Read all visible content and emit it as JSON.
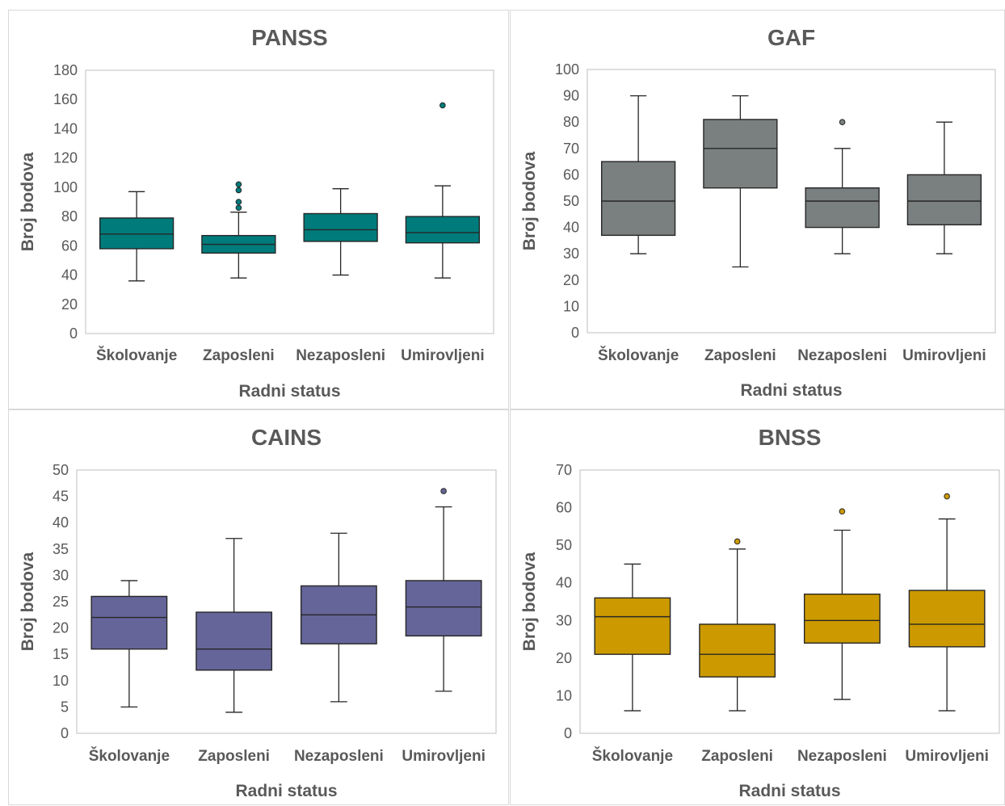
{
  "chart_data": [
    {
      "type": "boxplot",
      "title": "PANSS",
      "xlabel": "Radni status",
      "ylabel": "Broj bodova",
      "ylim": [
        0,
        180
      ],
      "ticks": [
        0,
        20,
        40,
        60,
        80,
        100,
        120,
        140,
        160,
        180
      ],
      "color": "#007B7B",
      "categories": [
        "Školovanje",
        "Zaposleni",
        "Nezaposleni",
        "Umirovljeni"
      ],
      "boxes": [
        {
          "min": 36,
          "q1": 58,
          "median": 68,
          "q3": 79,
          "max": 97,
          "outliers": []
        },
        {
          "min": 38,
          "q1": 55,
          "median": 61,
          "q3": 67,
          "max": 83,
          "outliers": [
            86,
            90,
            98,
            102
          ]
        },
        {
          "min": 40,
          "q1": 63,
          "median": 71,
          "q3": 82,
          "max": 99,
          "outliers": []
        },
        {
          "min": 38,
          "q1": 62,
          "median": 69,
          "q3": 80,
          "max": 101,
          "outliers": [
            156
          ]
        }
      ]
    },
    {
      "type": "boxplot",
      "title": "GAF",
      "xlabel": "Radni status",
      "ylabel": "Broj bodova",
      "ylim": [
        0,
        100
      ],
      "ticks": [
        0,
        10,
        20,
        30,
        40,
        50,
        60,
        70,
        80,
        90,
        100
      ],
      "color": "#7A7F80",
      "categories": [
        "Školovanje",
        "Zaposleni",
        "Nezaposleni",
        "Umirovljeni"
      ],
      "boxes": [
        {
          "min": 30,
          "q1": 37,
          "median": 50,
          "q3": 65,
          "max": 90,
          "outliers": []
        },
        {
          "min": 25,
          "q1": 55,
          "median": 70,
          "q3": 81,
          "max": 90,
          "outliers": []
        },
        {
          "min": 30,
          "q1": 40,
          "median": 50,
          "q3": 55,
          "max": 70,
          "outliers": [
            80
          ]
        },
        {
          "min": 30,
          "q1": 41,
          "median": 50,
          "q3": 60,
          "max": 80,
          "outliers": []
        }
      ]
    },
    {
      "type": "boxplot",
      "title": "CAINS",
      "xlabel": "Radni status",
      "ylabel": "Broj bodova",
      "ylim": [
        0,
        50
      ],
      "ticks": [
        0,
        5,
        10,
        15,
        20,
        25,
        30,
        35,
        40,
        45,
        50
      ],
      "color": "#65659A",
      "categories": [
        "Školovanje",
        "Zaposleni",
        "Nezaposleni",
        "Umirovljeni"
      ],
      "boxes": [
        {
          "min": 5,
          "q1": 16,
          "median": 22,
          "q3": 26,
          "max": 29,
          "outliers": []
        },
        {
          "min": 4,
          "q1": 12,
          "median": 16,
          "q3": 23,
          "max": 37,
          "outliers": []
        },
        {
          "min": 6,
          "q1": 17,
          "median": 22.5,
          "q3": 28,
          "max": 38,
          "outliers": []
        },
        {
          "min": 8,
          "q1": 18.5,
          "median": 24,
          "q3": 29,
          "max": 43,
          "outliers": [
            46
          ]
        }
      ]
    },
    {
      "type": "boxplot",
      "title": "BNSS",
      "xlabel": "Radni status",
      "ylabel": "Broj bodova",
      "ylim": [
        0,
        70
      ],
      "ticks": [
        0,
        10,
        20,
        30,
        40,
        50,
        60,
        70
      ],
      "color": "#CC9A00",
      "categories": [
        "Školovanje",
        "Zaposleni",
        "Nezaposleni",
        "Umirovljeni"
      ],
      "boxes": [
        {
          "min": 6,
          "q1": 21,
          "median": 31,
          "q3": 36,
          "max": 45,
          "outliers": []
        },
        {
          "min": 6,
          "q1": 15,
          "median": 21,
          "q3": 29,
          "max": 49,
          "outliers": [
            51
          ]
        },
        {
          "min": 9,
          "q1": 24,
          "median": 30,
          "q3": 37,
          "max": 54,
          "outliers": [
            59
          ]
        },
        {
          "min": 6,
          "q1": 23,
          "median": 29,
          "q3": 38,
          "max": 57,
          "outliers": [
            63
          ]
        }
      ]
    }
  ]
}
